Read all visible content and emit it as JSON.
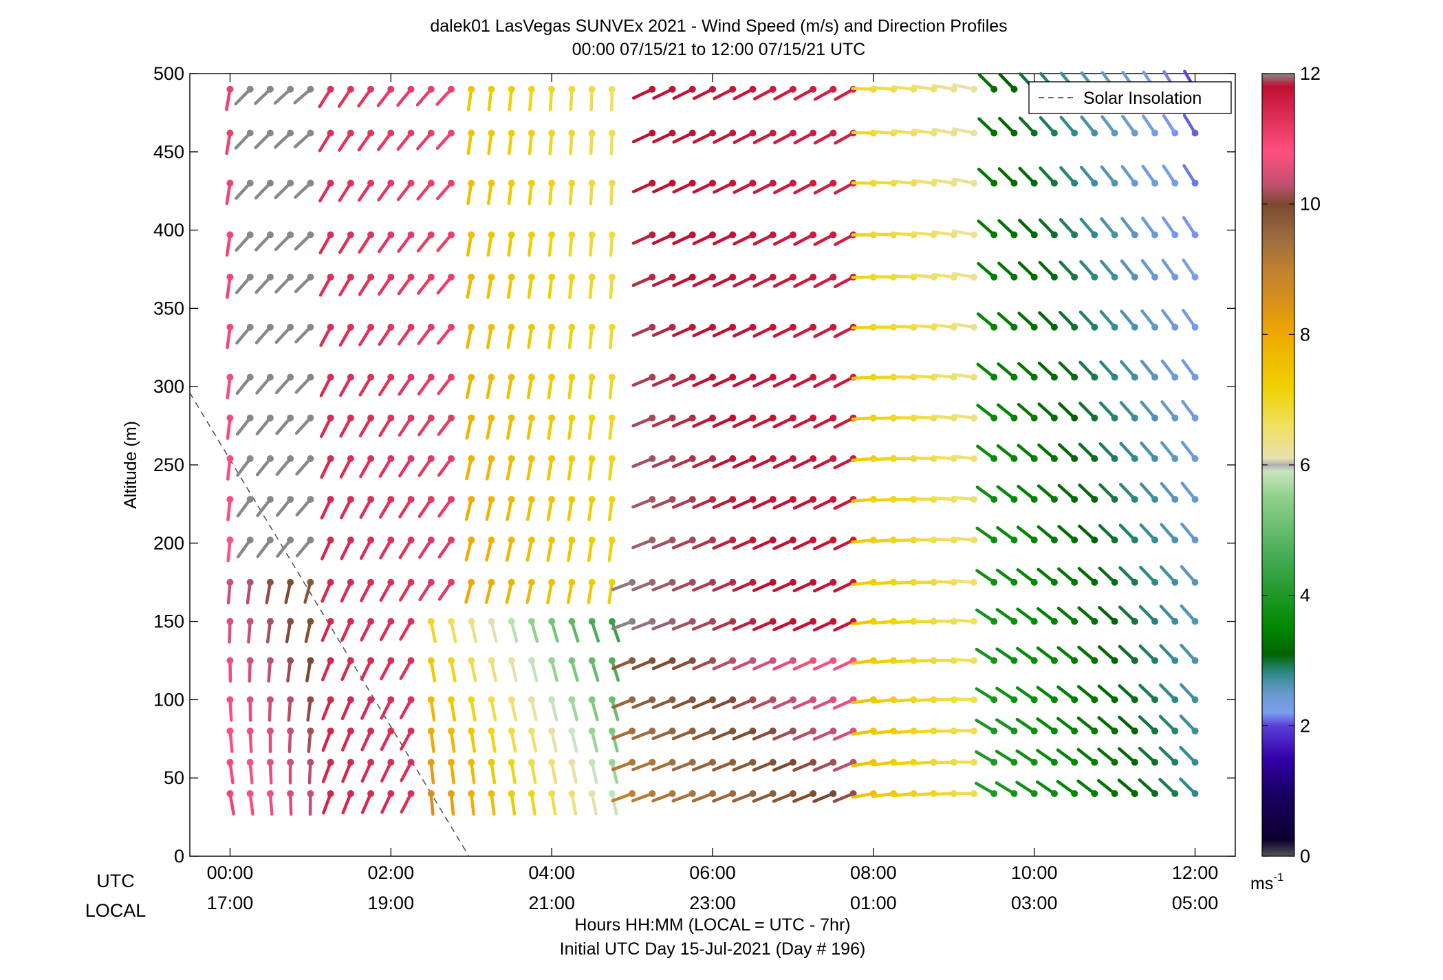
{
  "chart_data": {
    "type": "wind-barb-profile",
    "title": "dalek01 LasVegas SUNVEx 2021 - Wind Speed (m/s) and Direction Profiles",
    "subtitle": "00:00 07/15/21 to 12:00 07/15/21  UTC",
    "ylabel": "Altitude (m)",
    "xlabel": "Hours HH:MM  (LOCAL = UTC - 7hr)",
    "xlabel2": "Initial UTC Day 15-Jul-2021 (Day # 196)",
    "row_labels": {
      "utc": "UTC",
      "local": "LOCAL"
    },
    "xlim_hours": [
      -0.5,
      12.5
    ],
    "ylim": [
      0,
      500
    ],
    "y_ticks": [
      0,
      50,
      100,
      150,
      200,
      250,
      300,
      350,
      400,
      450,
      500
    ],
    "x_ticks": [
      {
        "hour": 0,
        "utc": "00:00",
        "local": "17:00"
      },
      {
        "hour": 2,
        "utc": "02:00",
        "local": "19:00"
      },
      {
        "hour": 4,
        "utc": "04:00",
        "local": "21:00"
      },
      {
        "hour": 6,
        "utc": "06:00",
        "local": "23:00"
      },
      {
        "hour": 8,
        "utc": "08:00",
        "local": "01:00"
      },
      {
        "hour": 10,
        "utc": "10:00",
        "local": "03:00"
      },
      {
        "hour": 12,
        "utc": "12:00",
        "local": "05:00"
      }
    ],
    "legend": {
      "label": "Solar Insolation",
      "position": "top-right"
    },
    "solar_insolation_line": {
      "points": [
        [
          -0.5,
          296
        ],
        [
          2.97,
          0
        ]
      ]
    },
    "colorbar": {
      "ticks": [
        0,
        2,
        4,
        6,
        8,
        10,
        12
      ],
      "unit": "ms",
      "unit_sup": "-1",
      "stops": [
        [
          0,
          "#555555"
        ],
        [
          0.25,
          "#0a0030"
        ],
        [
          1.0,
          "#1a0066"
        ],
        [
          1.5,
          "#3300aa"
        ],
        [
          2.0,
          "#5a3fd6"
        ],
        [
          2.2,
          "#7a9ff0"
        ],
        [
          2.5,
          "#6699cc"
        ],
        [
          2.8,
          "#2e8b8b"
        ],
        [
          3.1,
          "#006400"
        ],
        [
          3.5,
          "#008800"
        ],
        [
          4.5,
          "#3fa84f"
        ],
        [
          5.5,
          "#8fd08a"
        ],
        [
          5.9,
          "#c8e6c0"
        ],
        [
          6.0,
          "#b0b0b0"
        ],
        [
          6.1,
          "#e8e0b0"
        ],
        [
          6.6,
          "#f0e060"
        ],
        [
          7.2,
          "#f0d000"
        ],
        [
          8.0,
          "#f0a800"
        ],
        [
          8.5,
          "#d8901a"
        ],
        [
          9.0,
          "#c08030"
        ],
        [
          9.5,
          "#9a6a40"
        ],
        [
          10.0,
          "#7a4a30"
        ],
        [
          10.3,
          "#c05070"
        ],
        [
          10.8,
          "#ff5080"
        ],
        [
          11.3,
          "#e0305a"
        ],
        [
          11.8,
          "#c01030"
        ],
        [
          12.0,
          "#888888"
        ]
      ]
    },
    "times_hours": [
      0,
      0.25,
      0.5,
      0.75,
      1,
      1.25,
      1.5,
      1.75,
      2,
      2.25,
      2.5,
      2.75,
      3,
      3.25,
      3.5,
      3.75,
      4,
      4.25,
      4.5,
      4.75,
      5,
      5.25,
      5.5,
      5.75,
      6,
      6.25,
      6.5,
      6.75,
      7,
      7.25,
      7.5,
      7.75,
      8,
      8.25,
      8.5,
      8.75,
      9,
      9.25,
      9.5,
      9.75,
      10,
      10.25,
      10.5,
      10.75,
      11,
      11.25,
      11.5,
      11.75,
      12
    ],
    "altitudes_m": [
      40,
      60,
      80,
      100,
      125,
      150,
      175,
      202,
      228,
      254,
      280,
      306,
      338,
      370,
      397,
      430,
      462,
      490
    ],
    "direction_convention": "degrees from which wind blows",
    "segments": [
      {
        "t_range_hours": [
          0,
          1.4
        ],
        "alt_range_m": [
          40,
          180
        ],
        "speed_ms": [
          11,
          9.5
        ],
        "direction_deg": [
          170,
          200
        ]
      },
      {
        "t_range_hours": [
          0,
          0.3
        ],
        "alt_range_m": [
          180,
          500
        ],
        "speed_ms": [
          10.8,
          11.5
        ],
        "direction_deg": [
          185,
          195
        ]
      },
      {
        "t_range_hours": [
          0.25,
          2.0
        ],
        "alt_range_m": [
          180,
          500
        ],
        "speed_ms": [
          12,
          12
        ],
        "direction_deg": [
          215,
          235
        ]
      },
      {
        "t_range_hours": [
          1.25,
          3.0
        ],
        "alt_range_m": [
          40,
          500
        ],
        "speed_ms": [
          11.5,
          11
        ],
        "direction_deg": [
          200,
          225
        ]
      },
      {
        "t_range_hours": [
          2.5,
          4.8
        ],
        "alt_range_m": [
          40,
          170
        ],
        "speed_ms": [
          8.5,
          4
        ],
        "direction_deg": [
          175,
          160
        ]
      },
      {
        "t_range_hours": [
          3.0,
          5.0
        ],
        "alt_range_m": [
          170,
          500
        ],
        "speed_ms": [
          8,
          6.5
        ],
        "direction_deg": [
          195,
          180
        ]
      },
      {
        "t_range_hours": [
          5.0,
          8.0
        ],
        "alt_range_m": [
          40,
          130
        ],
        "speed_ms": [
          9,
          11
        ],
        "direction_deg": [
          250,
          245
        ]
      },
      {
        "t_range_hours": [
          5.0,
          8.0
        ],
        "alt_range_m": [
          130,
          500
        ],
        "speed_ms": [
          12,
          11.5
        ],
        "direction_deg": [
          250,
          240
        ]
      },
      {
        "t_range_hours": [
          8.0,
          9.5
        ],
        "alt_range_m": [
          40,
          500
        ],
        "speed_ms": [
          7.5,
          6
        ],
        "direction_deg": [
          260,
          285
        ]
      },
      {
        "t_range_hours": [
          9.5,
          12.0
        ],
        "alt_range_m": [
          40,
          500
        ],
        "speed_ms": [
          4,
          2
        ],
        "direction_deg": [
          300,
          330
        ]
      }
    ]
  }
}
